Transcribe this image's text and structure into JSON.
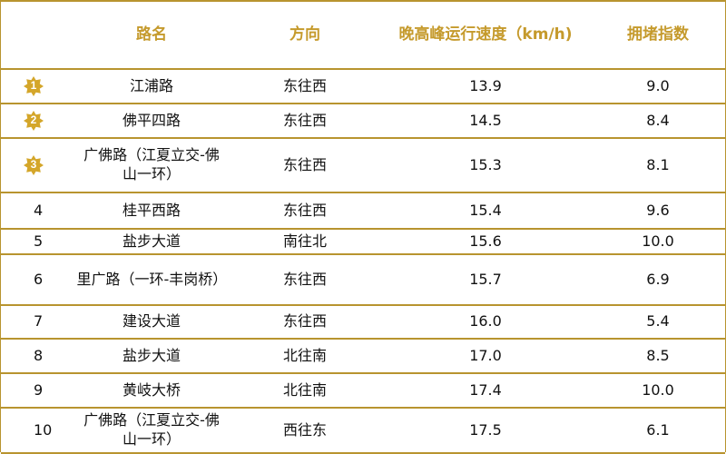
{
  "header": {
    "rank": "",
    "name": "路名",
    "direction": "方向",
    "speed": "晚高峰运行速度（km/h)",
    "index": "拥堵指数"
  },
  "rows": [
    {
      "rank": "1",
      "name": "江浦路",
      "direction": "东往西",
      "speed": "13.9",
      "index": "9.0"
    },
    {
      "rank": "2",
      "name": "佛平四路",
      "direction": "东往西",
      "speed": "14.5",
      "index": "8.4"
    },
    {
      "rank": "3",
      "name": "广佛路（江夏立交-佛山一环）",
      "direction": "东往西",
      "speed": "15.3",
      "index": "8.1"
    },
    {
      "rank": "4",
      "name": "桂平西路",
      "direction": "东往西",
      "speed": "15.4",
      "index": "9.6"
    },
    {
      "rank": "5",
      "name": "盐步大道",
      "direction": "南往北",
      "speed": "15.6",
      "index": "10.0"
    },
    {
      "rank": "6",
      "name": "里广路（一环-丰岗桥）",
      "direction": "东往西",
      "speed": "15.7",
      "index": "6.9"
    },
    {
      "rank": "7",
      "name": "建设大道",
      "direction": "东往西",
      "speed": "16.0",
      "index": "5.4"
    },
    {
      "rank": "8",
      "name": "盐步大道",
      "direction": "北往南",
      "speed": "17.0",
      "index": "8.5"
    },
    {
      "rank": "9",
      "name": "黄岐大桥",
      "direction": "北往南",
      "speed": "17.4",
      "index": "10.0"
    },
    {
      "rank": "10",
      "name": "广佛路（江夏立交-佛山一环）",
      "direction": "西往东",
      "speed": "17.5",
      "index": "6.1"
    }
  ],
  "colors": {
    "accent": "#c59a2c",
    "border": "#b8942f",
    "badge": "#d4a62a"
  },
  "badge_icon": "gold-medal-badge-icon"
}
